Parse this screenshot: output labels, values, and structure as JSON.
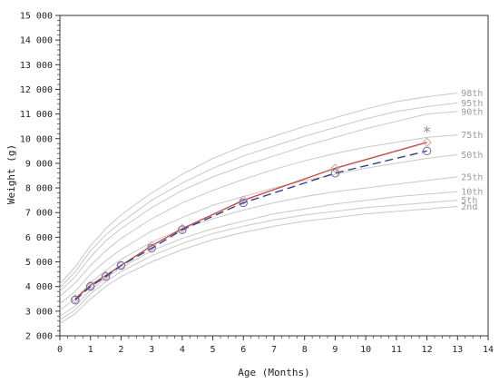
{
  "chart_data": {
    "type": "line",
    "title": "",
    "xlabel": "Age (Months)",
    "ylabel": "Weight (g)",
    "xlim": [
      0,
      14
    ],
    "ylim": [
      2000,
      15000
    ],
    "x_ticks": [
      "0",
      "1",
      "2",
      "3",
      "4",
      "5",
      "6",
      "7",
      "8",
      "9",
      "10",
      "11",
      "12",
      "13",
      "14"
    ],
    "y_ticks": [
      "2 000",
      "3 000",
      "4 000",
      "5 000",
      "6 000",
      "7 000",
      "8 000",
      "9 000",
      "10 000",
      "11 000",
      "12 000",
      "13 000",
      "14 000",
      "15 000"
    ],
    "grid": false,
    "percentile_ages": [
      0,
      0.5,
      1,
      1.5,
      2,
      3,
      4,
      5,
      6,
      7,
      8,
      9,
      10,
      11,
      12,
      13
    ],
    "percentiles": [
      {
        "name": "2nd",
        "values": [
          2500,
          2900,
          3500,
          4000,
          4400,
          5000,
          5500,
          5900,
          6200,
          6450,
          6650,
          6800,
          6950,
          7050,
          7150,
          7250
        ]
      },
      {
        "name": "5th",
        "values": [
          2650,
          3050,
          3700,
          4200,
          4600,
          5250,
          5750,
          6150,
          6450,
          6700,
          6900,
          7050,
          7200,
          7300,
          7400,
          7500
        ]
      },
      {
        "name": "10th",
        "values": [
          2800,
          3200,
          3850,
          4350,
          4750,
          5450,
          5950,
          6350,
          6650,
          6950,
          7150,
          7350,
          7500,
          7650,
          7750,
          7850
        ]
      },
      {
        "name": "25th",
        "values": [
          3050,
          3500,
          4150,
          4650,
          5100,
          5800,
          6350,
          6750,
          7100,
          7400,
          7650,
          7850,
          8000,
          8150,
          8300,
          8450
        ]
      },
      {
        "name": "50th",
        "values": [
          3300,
          3800,
          4500,
          5050,
          5500,
          6250,
          6800,
          7300,
          7650,
          8000,
          8300,
          8550,
          8800,
          9000,
          9200,
          9350
        ]
      },
      {
        "name": "75th",
        "values": [
          3600,
          4150,
          4850,
          5450,
          5950,
          6750,
          7400,
          7900,
          8350,
          8750,
          9100,
          9400,
          9650,
          9850,
          10050,
          10150
        ]
      },
      {
        "name": "90th",
        "values": [
          3800,
          4400,
          5200,
          5850,
          6350,
          7200,
          7900,
          8450,
          8900,
          9300,
          9700,
          10050,
          10400,
          10700,
          11000,
          11100
        ]
      },
      {
        "name": "95th",
        "values": [
          3950,
          4600,
          5450,
          6100,
          6600,
          7500,
          8200,
          8800,
          9300,
          9700,
          10100,
          10450,
          10800,
          11100,
          11300,
          11450
        ]
      },
      {
        "name": "98th",
        "values": [
          4100,
          4800,
          5650,
          6350,
          6900,
          7800,
          8550,
          9200,
          9700,
          10100,
          10500,
          10850,
          11200,
          11500,
          11700,
          11850
        ]
      }
    ],
    "series": [
      {
        "name": "",
        "color": "#c0504d",
        "style": "solid",
        "marker": "diamond",
        "x": [
          0.5,
          1,
          1.5,
          2,
          3,
          4,
          6,
          9,
          12
        ],
        "y": [
          3500,
          4050,
          4450,
          4850,
          5650,
          6350,
          7500,
          8800,
          9850
        ]
      },
      {
        "name": "",
        "color": "#3b3b8f",
        "style": "dashed",
        "marker": "circle",
        "x": [
          0.5,
          1,
          1.5,
          2,
          3,
          4,
          6,
          9,
          12
        ],
        "y": [
          3450,
          4000,
          4400,
          4850,
          5550,
          6300,
          7400,
          8600,
          9500
        ]
      }
    ],
    "annotations": [
      {
        "text": "*",
        "x": 12,
        "y": 10300
      }
    ]
  }
}
